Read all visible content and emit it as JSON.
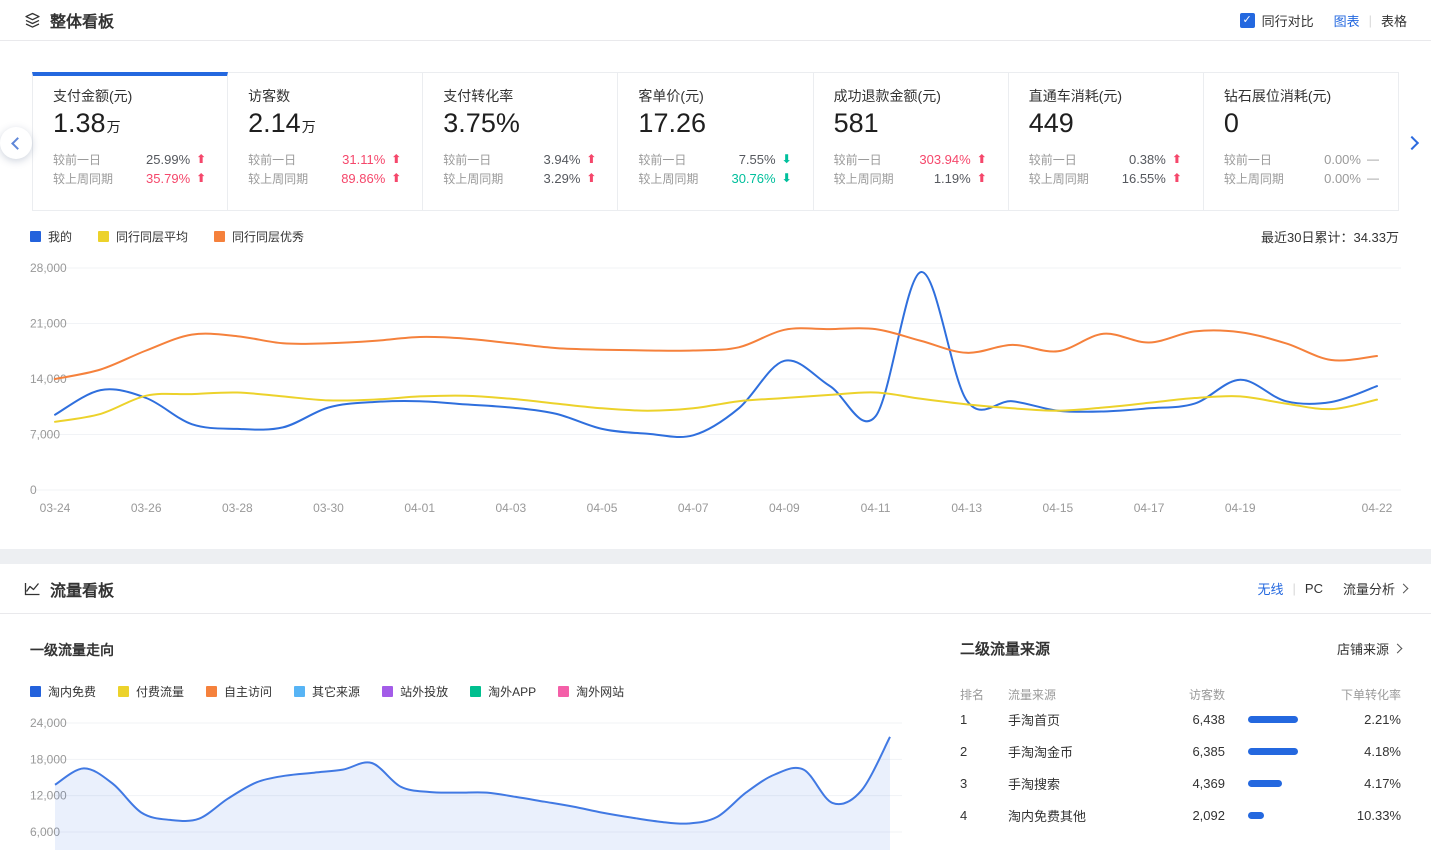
{
  "colors": {
    "accent": "#2468df",
    "bar_blue": "#2468df",
    "up_red": "#f5476b",
    "down_green": "#00bf9c",
    "grid": "#f1f3f6",
    "axis_text": "#999999",
    "area_fill": "rgba(47,111,221,0.10)",
    "area_line": "#4179e3",
    "paid_fill": "#f6d92e",
    "paid_line": "#e7c51d"
  },
  "overview": {
    "title": "整体看板",
    "peer_compare": "同行对比",
    "view_toggle": {
      "chart": "图表",
      "table": "表格"
    },
    "summary": "最近30日累计：34.33万",
    "cards": [
      {
        "label": "支付金额(元)",
        "value": "1.38",
        "unit": "万",
        "active": true,
        "changes": [
          {
            "label": "较前一日",
            "value": "25.99%",
            "dir": "up",
            "tone": "neutral"
          },
          {
            "label": "较上周同期",
            "value": "35.79%",
            "dir": "up",
            "tone": "red"
          }
        ]
      },
      {
        "label": "访客数",
        "value": "2.14",
        "unit": "万",
        "active": false,
        "changes": [
          {
            "label": "较前一日",
            "value": "31.11%",
            "dir": "up",
            "tone": "red"
          },
          {
            "label": "较上周同期",
            "value": "89.86%",
            "dir": "up",
            "tone": "red"
          }
        ]
      },
      {
        "label": "支付转化率",
        "value": "3.75%",
        "unit": "",
        "active": false,
        "changes": [
          {
            "label": "较前一日",
            "value": "3.94%",
            "dir": "up",
            "tone": "neutral"
          },
          {
            "label": "较上周同期",
            "value": "3.29%",
            "dir": "up",
            "tone": "neutral"
          }
        ]
      },
      {
        "label": "客单价(元)",
        "value": "17.26",
        "unit": "",
        "active": false,
        "changes": [
          {
            "label": "较前一日",
            "value": "7.55%",
            "dir": "down",
            "tone": "neutral"
          },
          {
            "label": "较上周同期",
            "value": "30.76%",
            "dir": "down",
            "tone": "green"
          }
        ]
      },
      {
        "label": "成功退款金额(元)",
        "value": "581",
        "unit": "",
        "active": false,
        "changes": [
          {
            "label": "较前一日",
            "value": "303.94%",
            "dir": "up",
            "tone": "red"
          },
          {
            "label": "较上周同期",
            "value": "1.19%",
            "dir": "up",
            "tone": "neutral"
          }
        ]
      },
      {
        "label": "直通车消耗(元)",
        "value": "449",
        "unit": "",
        "active": false,
        "changes": [
          {
            "label": "较前一日",
            "value": "0.38%",
            "dir": "up",
            "tone": "neutral"
          },
          {
            "label": "较上周同期",
            "value": "16.55%",
            "dir": "up",
            "tone": "neutral"
          }
        ]
      },
      {
        "label": "钻石展位消耗(元)",
        "value": "0",
        "unit": "",
        "active": false,
        "changes": [
          {
            "label": "较前一日",
            "value": "0.00%",
            "dir": "flat",
            "tone": "muted"
          },
          {
            "label": "较上周同期",
            "value": "0.00%",
            "dir": "flat",
            "tone": "muted"
          }
        ]
      }
    ],
    "legend": [
      {
        "label": "我的",
        "color": "#2362dc"
      },
      {
        "label": "同行同层平均",
        "color": "#ecd22b"
      },
      {
        "label": "同行同层优秀",
        "color": "#f5813c"
      }
    ]
  },
  "traffic": {
    "title": "流量看板",
    "tabs": {
      "wireless": "无线",
      "pc": "PC"
    },
    "analysis": "流量分析",
    "trend_title": "一级流量走向",
    "trend_legend": [
      {
        "label": "淘内免费",
        "color": "#2362dc"
      },
      {
        "label": "付费流量",
        "color": "#ecd22b"
      },
      {
        "label": "自主访问",
        "color": "#f5813c"
      },
      {
        "label": "其它来源",
        "color": "#57b4f5"
      },
      {
        "label": "站外投放",
        "color": "#a35ce8"
      },
      {
        "label": "淘外APP",
        "color": "#00bf8f"
      },
      {
        "label": "淘外网站",
        "color": "#f45fa8"
      }
    ],
    "sources": {
      "title": "二级流量来源",
      "link": "店铺来源",
      "columns": [
        "排名",
        "流量来源",
        "访客数",
        "下单转化率"
      ],
      "rows": [
        {
          "rank": "1",
          "name": "手淘首页",
          "visitors": "6,438",
          "conversion": "2.21%"
        },
        {
          "rank": "2",
          "name": "手淘淘金币",
          "visitors": "6,385",
          "conversion": "4.18%"
        },
        {
          "rank": "3",
          "name": "手淘搜索",
          "visitors": "4,369",
          "conversion": "4.17%"
        },
        {
          "rank": "4",
          "name": "淘内免费其他",
          "visitors": "2,092",
          "conversion": "10.33%"
        }
      ]
    }
  },
  "chart_data": [
    {
      "type": "line",
      "title": "整体看板 同行对比趋势",
      "x": [
        "03-24",
        "03-25",
        "03-26",
        "03-27",
        "03-28",
        "03-29",
        "03-30",
        "03-31",
        "04-01",
        "04-02",
        "04-03",
        "04-04",
        "04-05",
        "04-06",
        "04-07",
        "04-08",
        "04-09",
        "04-10",
        "04-11",
        "04-12",
        "04-13",
        "04-14",
        "04-15",
        "04-16",
        "04-17",
        "04-18",
        "04-19",
        "04-20",
        "04-21",
        "04-22"
      ],
      "xtick_labels": [
        "03-24",
        "03-26",
        "03-28",
        "03-30",
        "04-01",
        "04-03",
        "04-05",
        "04-07",
        "04-09",
        "04-11",
        "04-13",
        "04-15",
        "04-17",
        "04-19",
        "04-22"
      ],
      "ylim": [
        0,
        28000
      ],
      "yticks": [
        0,
        7000,
        14000,
        21000,
        28000
      ],
      "grid": true,
      "legend_position": "top-left",
      "series": [
        {
          "name": "我的",
          "color": "#2f6fdd",
          "values": [
            9500,
            12600,
            11600,
            8300,
            7700,
            7900,
            10400,
            11100,
            11200,
            10800,
            10400,
            9600,
            7700,
            7100,
            6900,
            10300,
            16300,
            13100,
            9300,
            27500,
            11300,
            11200,
            10000,
            9900,
            10300,
            10900,
            13900,
            11200,
            11100,
            13100
          ]
        },
        {
          "name": "同行同层平均",
          "color": "#ecd22b",
          "values": [
            8600,
            9600,
            11900,
            12100,
            12300,
            11800,
            11300,
            11400,
            11800,
            11900,
            11500,
            10900,
            10300,
            10000,
            10300,
            11200,
            11600,
            12000,
            12300,
            11500,
            10800,
            10300,
            10000,
            10400,
            11000,
            11600,
            11800,
            10900,
            10200,
            11400
          ]
        },
        {
          "name": "同行同层优秀",
          "color": "#f5813c",
          "values": [
            14000,
            15200,
            17600,
            19600,
            19400,
            18500,
            18500,
            18800,
            19300,
            19100,
            18500,
            17900,
            17700,
            17600,
            17600,
            18000,
            20200,
            20300,
            20300,
            18800,
            17300,
            18300,
            17500,
            19700,
            18600,
            20000,
            19900,
            18500,
            16400,
            16900
          ]
        }
      ]
    },
    {
      "type": "area",
      "title": "一级流量走向",
      "x": [
        "03-24",
        "03-25",
        "03-26",
        "03-27",
        "03-28",
        "03-29",
        "03-30",
        "03-31",
        "04-01",
        "04-02",
        "04-03",
        "04-04",
        "04-05",
        "04-06",
        "04-07",
        "04-08",
        "04-09",
        "04-10",
        "04-11",
        "04-12",
        "04-13",
        "04-14",
        "04-15",
        "04-16",
        "04-17",
        "04-18",
        "04-19",
        "04-20",
        "04-21",
        "04-22"
      ],
      "ylim": [
        0,
        24000
      ],
      "yticks": [
        6000,
        12000,
        18000,
        24000
      ],
      "grid": true,
      "clipped_bottom": true,
      "series": [
        {
          "name": "淘内免费",
          "color": "#4179e3",
          "values": [
            13800,
            16500,
            14000,
            9200,
            8000,
            8200,
            11500,
            14200,
            15300,
            15800,
            16300,
            17400,
            13500,
            12600,
            12500,
            12500,
            11800,
            11000,
            10200,
            9200,
            8400,
            7700,
            7400,
            8500,
            12500,
            15500,
            16300,
            10800,
            12800,
            21700
          ]
        },
        {
          "name": "付费流量",
          "color": "#e7c51d",
          "values": [
            2100,
            2800,
            2300,
            1200,
            1100,
            1100,
            1300,
            1500,
            1600,
            1800,
            2200,
            2800,
            2400,
            1500,
            1300,
            1200,
            1200,
            1100,
            1100,
            1000,
            1000,
            1000,
            1100,
            1200,
            1500,
            2000,
            2600,
            2900,
            2600,
            2300
          ]
        }
      ]
    }
  ]
}
